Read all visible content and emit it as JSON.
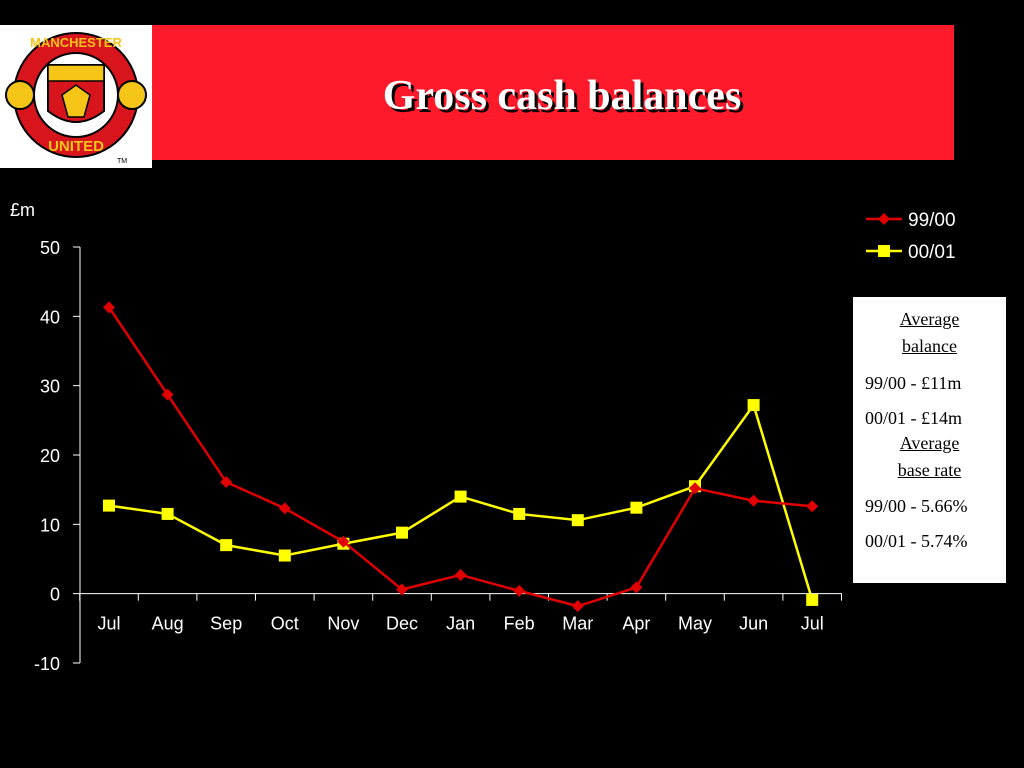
{
  "title": "Gross cash balances",
  "logo": {
    "top_text": "MANCHESTER",
    "bottom_text": "UNITED",
    "tm": "TM"
  },
  "colors": {
    "header": "#ff1a2b",
    "series_9900": "#e00000",
    "series_0001": "#ffff00"
  },
  "info_box": {
    "balance_heading": [
      "Average",
      "balance"
    ],
    "balance_9900": "99/00 - £11m",
    "balance_0001": "00/01 - £14m",
    "rate_heading": [
      "Average",
      "base rate"
    ],
    "rate_9900": "99/00 - 5.66%",
    "rate_0001": "00/01 - 5.74%"
  },
  "chart_data": {
    "type": "line",
    "ylabel": "£m",
    "xlabel": "",
    "ylim": [
      -10,
      50
    ],
    "yticks": [
      -10,
      0,
      10,
      20,
      30,
      40,
      50
    ],
    "categories": [
      "Jul",
      "Aug",
      "Sep",
      "Oct",
      "Nov",
      "Dec",
      "Jan",
      "Feb",
      "Mar",
      "Apr",
      "May",
      "Jun",
      "Jul"
    ],
    "legend_position": "top-right",
    "grid": false,
    "series": [
      {
        "name": "99/00",
        "marker": "diamond",
        "color": "#e00000",
        "values": [
          41.3,
          28.7,
          16.1,
          12.3,
          7.5,
          0.6,
          2.7,
          0.4,
          -1.8,
          0.9,
          15.2,
          13.4,
          12.6
        ]
      },
      {
        "name": "00/01",
        "marker": "square",
        "color": "#ffff00",
        "values": [
          12.7,
          11.5,
          7.0,
          5.5,
          7.2,
          8.8,
          14.0,
          11.5,
          10.6,
          12.4,
          15.5,
          27.2,
          -0.9
        ]
      }
    ]
  }
}
